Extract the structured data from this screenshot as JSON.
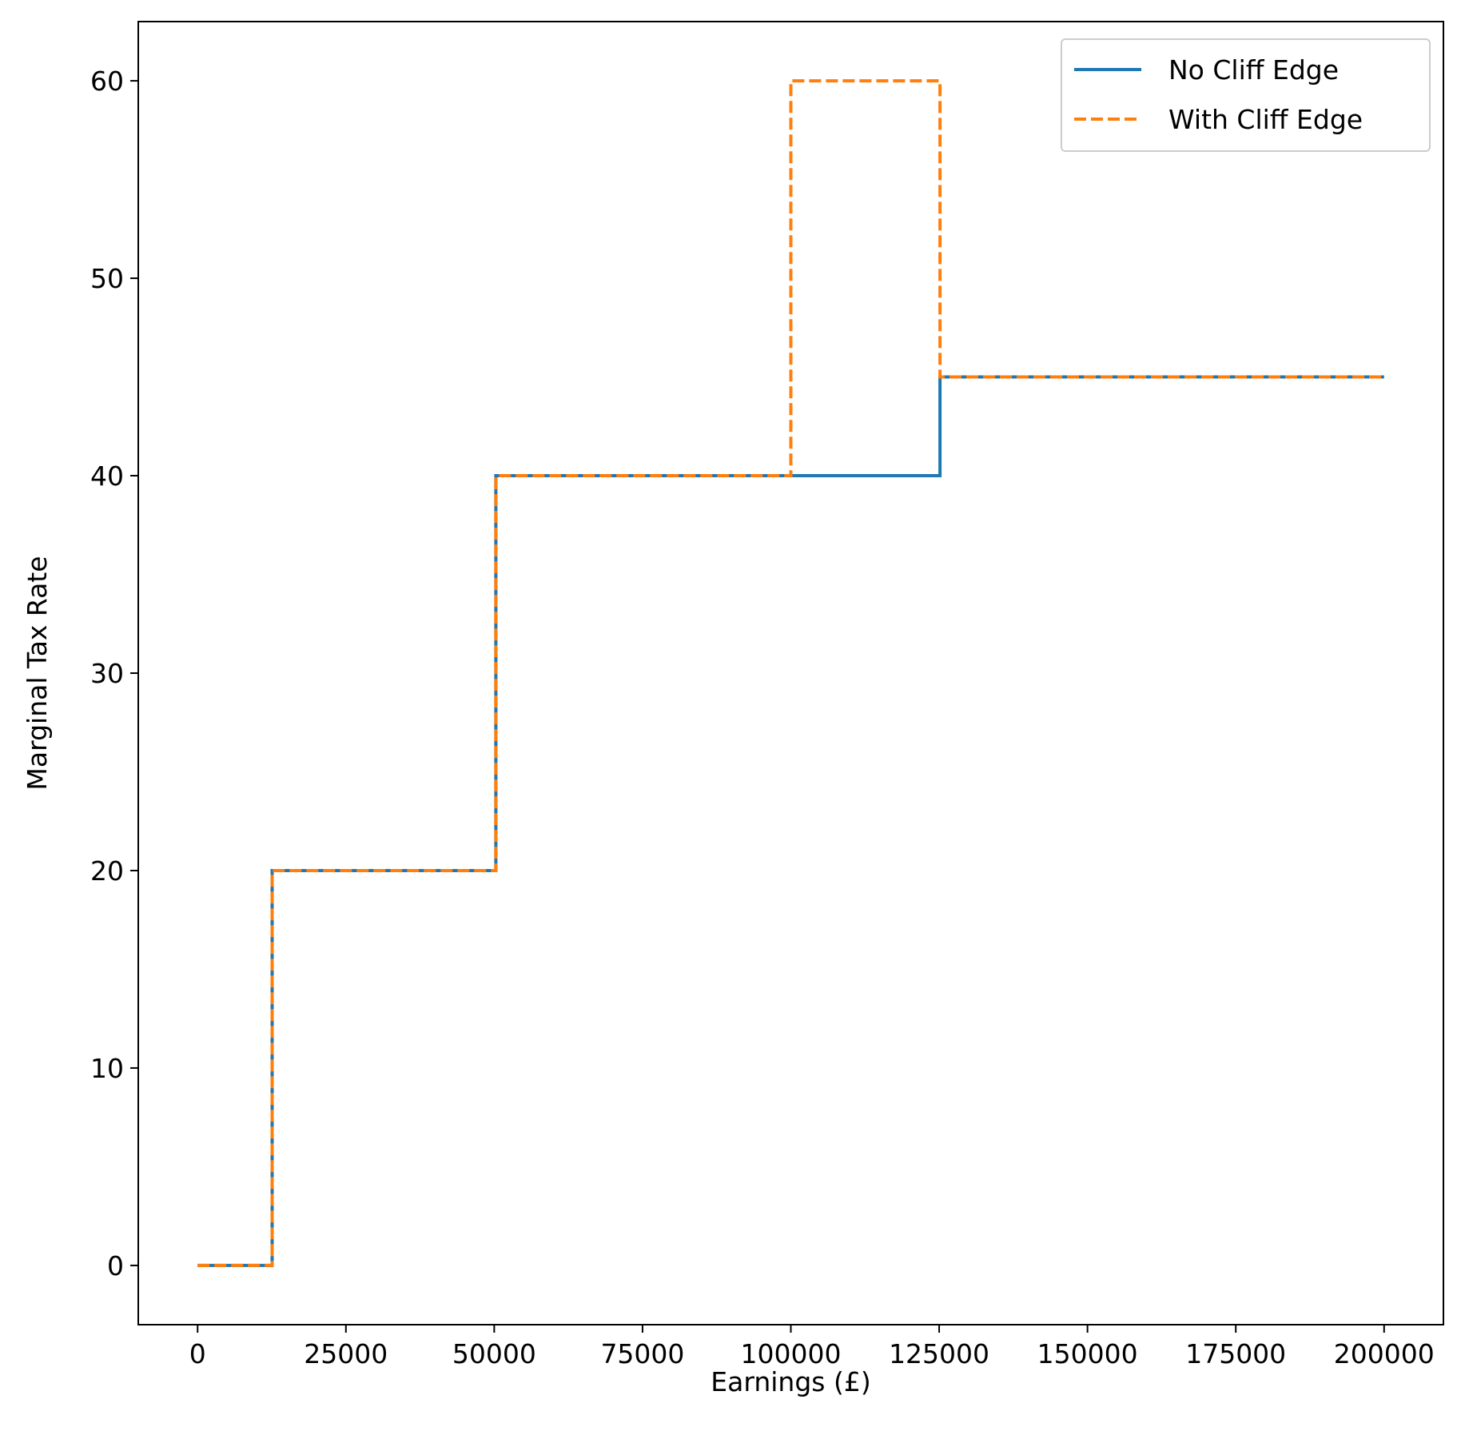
{
  "chart_data": {
    "type": "line",
    "title": "",
    "xlabel": "Earnings (£)",
    "ylabel": "Marginal Tax Rate",
    "xlim": [
      -10000,
      210000
    ],
    "ylim": [
      -3,
      63
    ],
    "x_ticks": [
      0,
      25000,
      50000,
      75000,
      100000,
      125000,
      150000,
      175000,
      200000
    ],
    "y_ticks": [
      0,
      10,
      20,
      30,
      40,
      50,
      60
    ],
    "grid": false,
    "legend_position": "top-right",
    "series": [
      {
        "name": "No Cliff Edge",
        "color": "#1f77b4",
        "line_style": "solid",
        "x": [
          0,
          12570,
          12570,
          50270,
          50270,
          125140,
          125140,
          200000
        ],
        "y": [
          0,
          0,
          20,
          20,
          40,
          40,
          45,
          45
        ]
      },
      {
        "name": "With Cliff Edge",
        "color": "#ff7f0e",
        "line_style": "dashed",
        "x": [
          0,
          12570,
          12570,
          50270,
          50270,
          100000,
          100000,
          125140,
          125140,
          200000
        ],
        "y": [
          0,
          0,
          20,
          20,
          40,
          40,
          60,
          60,
          45,
          45
        ]
      }
    ]
  }
}
